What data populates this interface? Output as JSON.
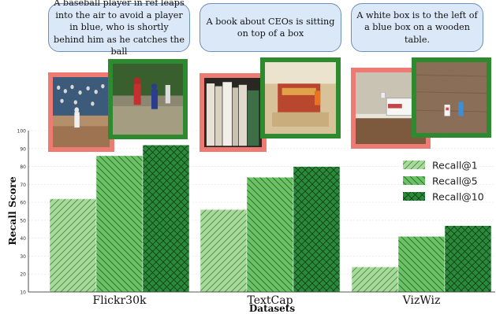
{
  "captions": [
    "A baseball player in ref leaps into the air to avoid a player in blue, who is shortly behind him as he catches the ball",
    "A book about CEOs is sitting on top of a box",
    "A white box is to the left of a blue box on a wooden table."
  ],
  "images": [
    {
      "ref": "baseball-crowd-photo",
      "target": "baseball-play-photo"
    },
    {
      "ref": "bookshelf-photo",
      "target": "books-on-box-photo"
    },
    {
      "ref": "white-box-photo",
      "target": "wooden-table-boxes-photo"
    }
  ],
  "colors": {
    "recall1": "#a8d99a",
    "recall5": "#6cc065",
    "recall10": "#2b8a3a",
    "ref_frame": "#ee7a74",
    "target_frame": "#2e8a2e",
    "caption_bg": "#dbe8f8"
  },
  "chart_data": {
    "type": "bar",
    "categories": [
      "Flickr30k",
      "TextCap",
      "VizWiz"
    ],
    "series": [
      {
        "name": "Recall@1",
        "values": [
          62,
          56,
          24
        ],
        "hatch": "/"
      },
      {
        "name": "Recall@5",
        "values": [
          86,
          74,
          41
        ],
        "hatch": "\\"
      },
      {
        "name": "Recall@10",
        "values": [
          92,
          80,
          47
        ],
        "hatch": "x"
      }
    ],
    "xlabel": "Datasets",
    "ylabel": "Recall Score",
    "ylim": [
      10,
      100
    ],
    "yticks": [
      "10",
      "20",
      "30",
      "40",
      "50",
      "60",
      "70",
      "80",
      "90",
      "100"
    ],
    "grid": true,
    "legend_position": "right"
  }
}
